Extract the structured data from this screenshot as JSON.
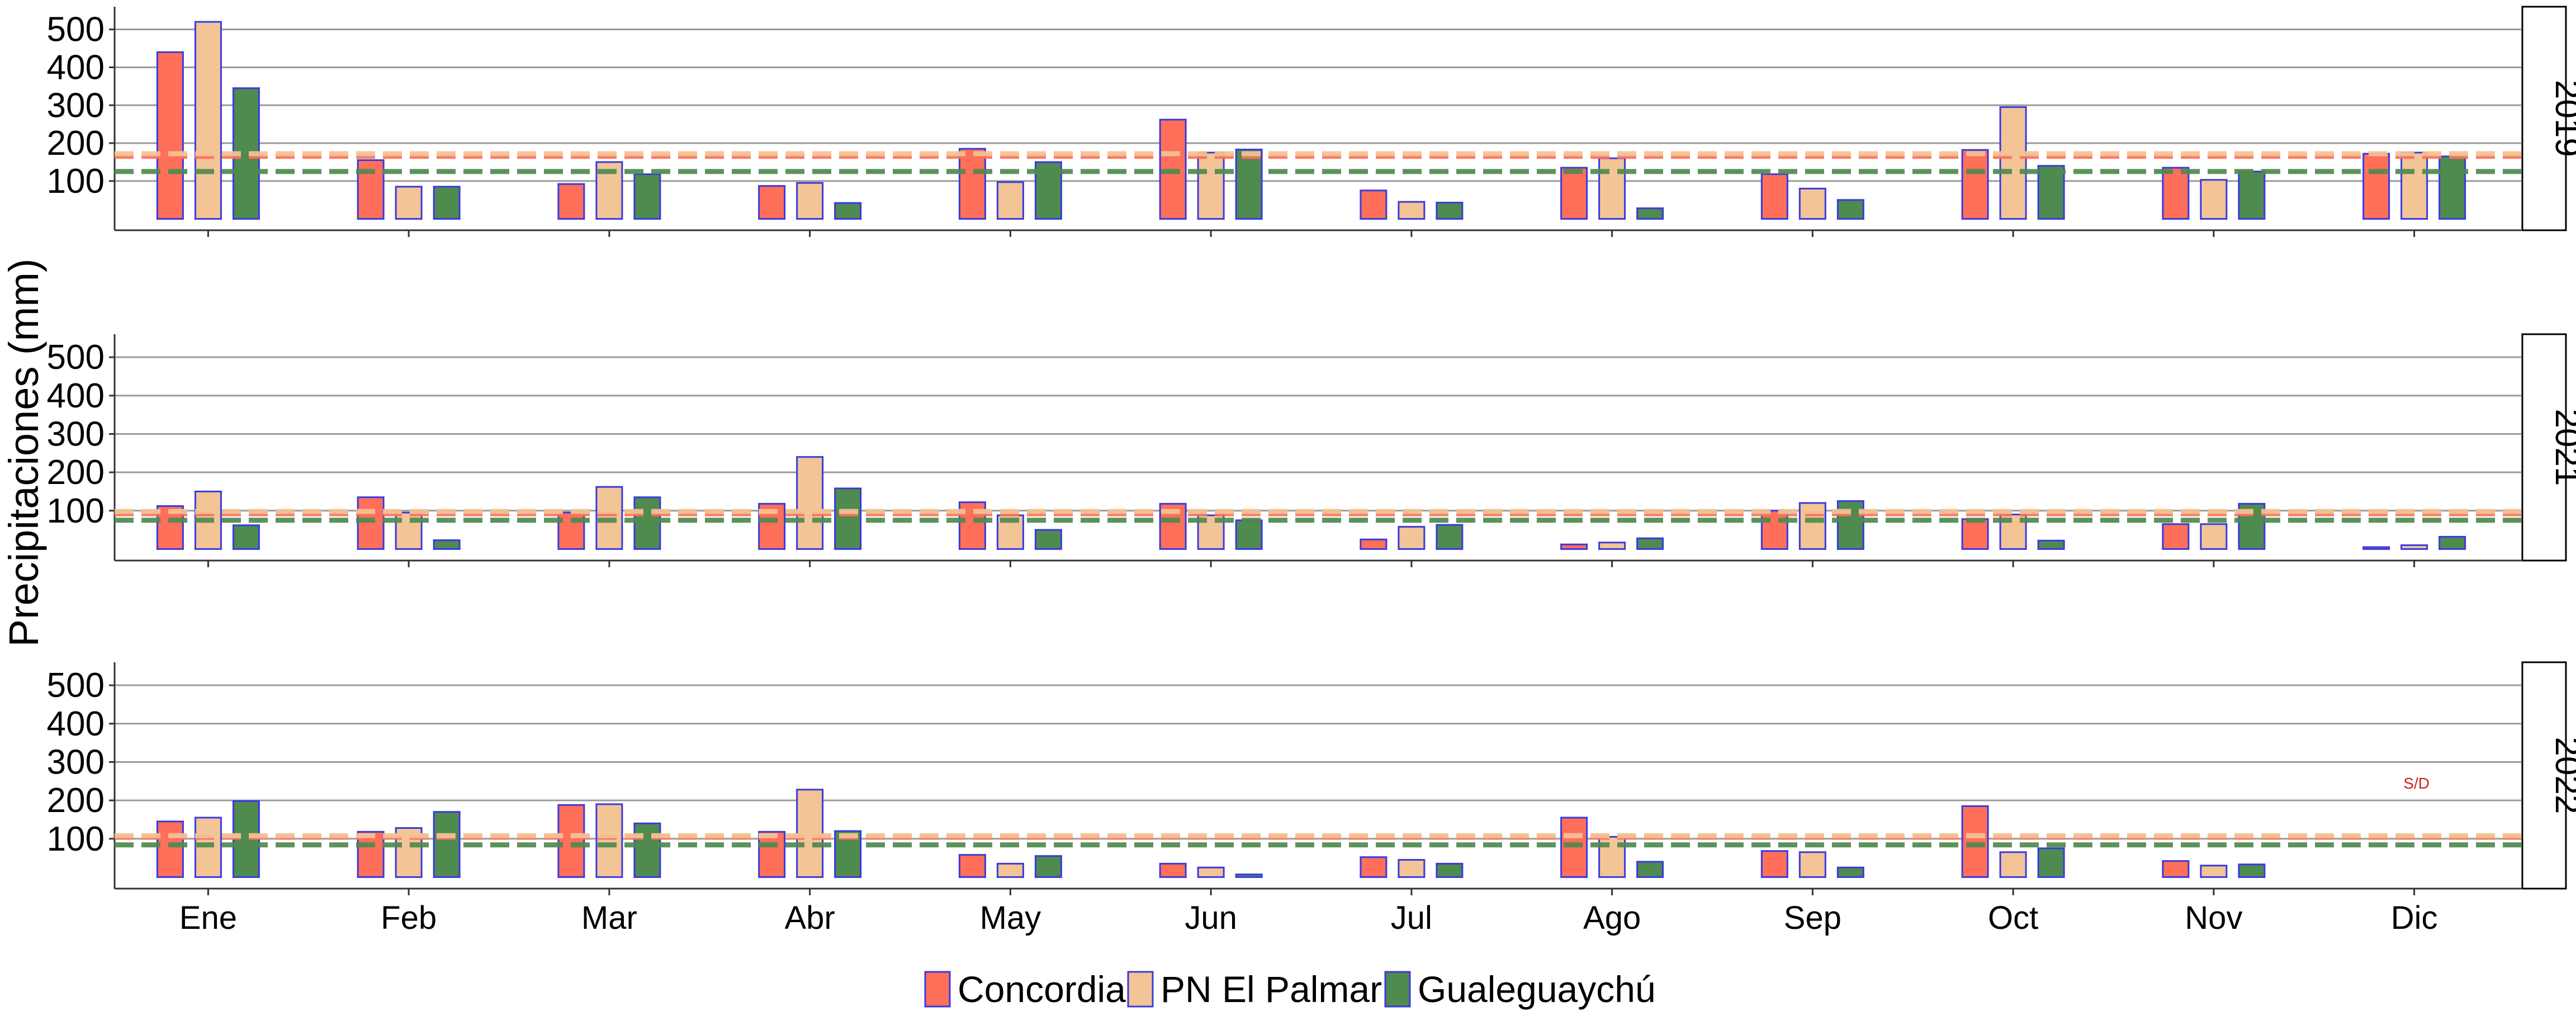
{
  "chart_data": {
    "type": "bar",
    "ylabel": "Precipitaciones (mm)",
    "xlabel": "",
    "title": "",
    "ylim": [
      -30,
      560
    ],
    "yticks": [
      100,
      200,
      300,
      400,
      500
    ],
    "grid": true,
    "legend_position": "bottom",
    "categories": [
      "Ene",
      "Feb",
      "Mar",
      "Abr",
      "May",
      "Jun",
      "Jul",
      "Ago",
      "Sep",
      "Oct",
      "Nov",
      "Dic"
    ],
    "series_meta": [
      {
        "name": "Concordia",
        "color": "#ff6f59"
      },
      {
        "name": "PN El Palmar",
        "color": "#f2c496"
      },
      {
        "name": "Gualeguaychú",
        "color": "#4f8a4f"
      }
    ],
    "bar_border_color": "#3a3adf",
    "panels": [
      {
        "strip": "2019",
        "series": [
          {
            "name": "Concordia",
            "values": [
              440,
              155,
              92,
              87,
              185,
              262,
              75,
              135,
              118,
              182,
              135,
              172
            ]
          },
          {
            "name": "PN El Palmar",
            "values": [
              520,
              85,
              150,
              95,
              97,
              175,
              45,
              160,
              80,
              295,
              103,
              175
            ]
          },
          {
            "name": "Gualeguaychú",
            "values": [
              345,
              85,
              118,
              42,
              150,
              183,
              43,
              28,
              50,
              140,
              125,
              165
            ]
          }
        ],
        "hlines": [
          {
            "series": "Concordia",
            "value": 165
          },
          {
            "series": "PN El Palmar",
            "value": 172
          },
          {
            "series": "Gualeguaychú",
            "value": 125
          }
        ]
      },
      {
        "strip": "2021",
        "series": [
          {
            "name": "Concordia",
            "values": [
              112,
              135,
              95,
              118,
              122,
              118,
              25,
              12,
              100,
              78,
              65,
              5
            ]
          },
          {
            "name": "PN El Palmar",
            "values": [
              150,
              95,
              162,
              240,
              88,
              88,
              58,
              17,
              120,
              90,
              65,
              10
            ]
          },
          {
            "name": "Gualeguaychú",
            "values": [
              62,
              23,
              135,
              158,
              50,
              75,
              63,
              28,
              125,
              22,
              118,
              32
            ]
          }
        ],
        "hlines": [
          {
            "series": "Concordia",
            "value": 92
          },
          {
            "series": "PN El Palmar",
            "value": 98
          },
          {
            "series": "Gualeguaychú",
            "value": 75
          }
        ]
      },
      {
        "strip": "2022",
        "series": [
          {
            "name": "Concordia",
            "values": [
              145,
              118,
              188,
              118,
              58,
              35,
              52,
              155,
              68,
              185,
              42,
              null
            ]
          },
          {
            "name": "PN El Palmar",
            "values": [
              155,
              128,
              190,
              228,
              35,
              25,
              45,
              105,
              65,
              65,
              30,
              null
            ]
          },
          {
            "name": "Gualeguaychú",
            "values": [
              198,
              170,
              140,
              120,
              55,
              7,
              35,
              40,
              25,
              75,
              33,
              null
            ]
          }
        ],
        "hlines": [
          {
            "series": "Concordia",
            "value": 104
          },
          {
            "series": "PN El Palmar",
            "value": 108
          },
          {
            "series": "Gualeguaychú",
            "value": 84
          }
        ],
        "annotation": {
          "text": "S/D",
          "category": "Dic",
          "value": 245
        }
      }
    ]
  }
}
